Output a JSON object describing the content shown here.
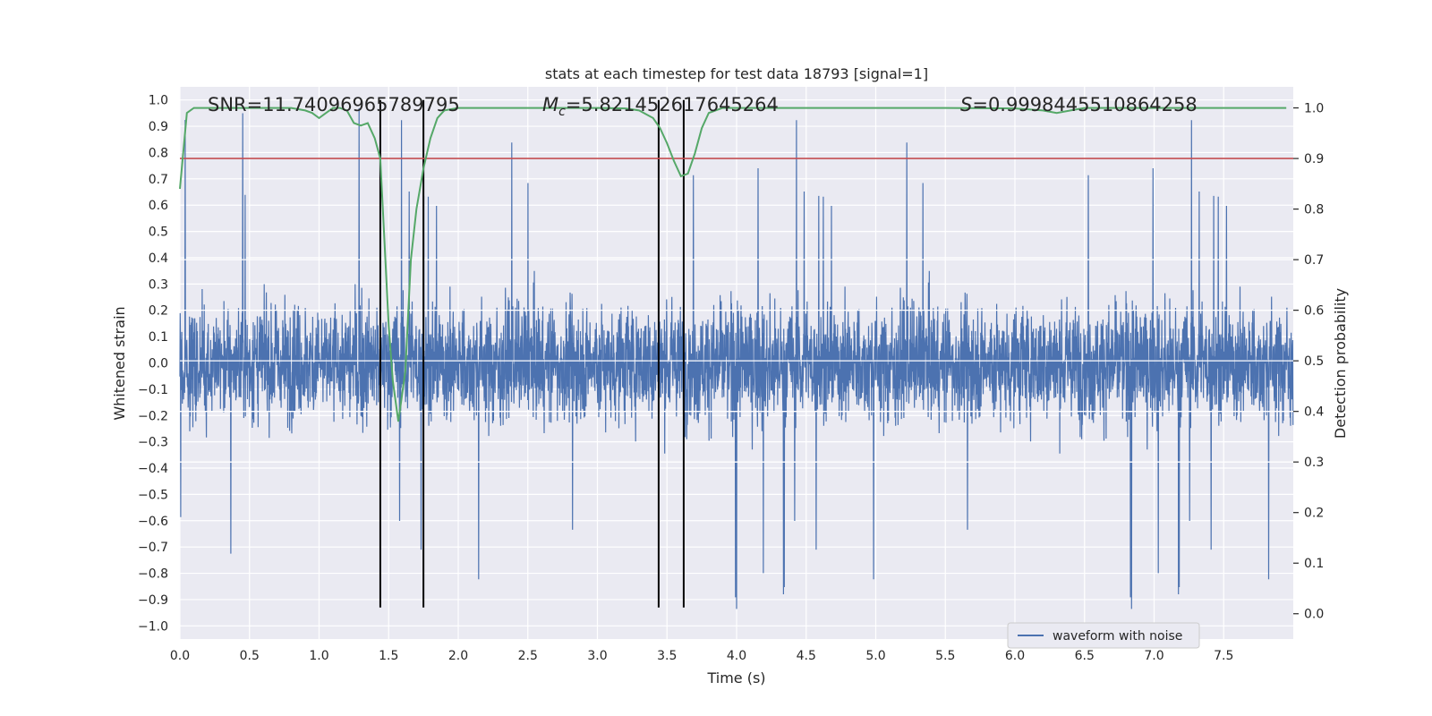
{
  "chart_data": {
    "type": "line",
    "title": "stats at each timestep for test data 18793 [signal=1]",
    "xlabel": "Time (s)",
    "ylabel_left": "Whitened strain",
    "ylabel_right": "Detection probability",
    "xlim": [
      0.0,
      8.0
    ],
    "ylim_left": [
      -1.05,
      1.05
    ],
    "ylim_right": [
      -0.05,
      1.0417
    ],
    "x_ticks": [
      "0.0",
      "0.5",
      "1.0",
      "1.5",
      "2.0",
      "2.5",
      "3.0",
      "3.5",
      "4.0",
      "4.5",
      "5.0",
      "5.5",
      "6.0",
      "6.5",
      "7.0",
      "7.5"
    ],
    "y_ticks_left": [
      "1.0",
      "0.9",
      "0.8",
      "0.7",
      "0.6",
      "0.5",
      "0.4",
      "0.3",
      "0.2",
      "0.1",
      "0.0",
      "−0.1",
      "−0.2",
      "−0.3",
      "−0.4",
      "−0.5",
      "−0.6",
      "−0.7",
      "−0.8",
      "−0.9",
      "−1.0"
    ],
    "y_ticks_right": [
      "1.0",
      "0.9",
      "0.8",
      "0.7",
      "0.6",
      "0.5",
      "0.4",
      "0.3",
      "0.2",
      "0.1",
      "0.0"
    ],
    "grid": true,
    "legend_position": "lower-right",
    "annotations": {
      "snr_label": "SNR",
      "snr_value": "=11.74096965789795",
      "mc_symbol": "M",
      "mc_subscript": "c",
      "mc_value": "=5.821452617645264",
      "s_symbol": "S",
      "s_value": "=0.9998445510864258"
    },
    "series": [
      {
        "name": "waveform with noise",
        "color": "#4c72b0",
        "kind": "noisy_strain",
        "duration_s": 8.0,
        "typical_amplitude": 0.4,
        "peak_amplitude": 1.0
      },
      {
        "color": "#55a868",
        "axis": "right",
        "x": [
          0.0,
          0.05,
          0.1,
          0.2,
          0.3,
          0.4,
          0.5,
          0.6,
          0.7,
          0.8,
          0.9,
          0.95,
          1.0,
          1.05,
          1.1,
          1.15,
          1.2,
          1.25,
          1.3,
          1.35,
          1.4,
          1.44,
          1.5,
          1.53,
          1.57,
          1.62,
          1.66,
          1.7,
          1.75,
          1.8,
          1.85,
          1.9,
          2.0,
          2.2,
          2.4,
          2.6,
          2.8,
          3.0,
          3.2,
          3.3,
          3.4,
          3.45,
          3.5,
          3.55,
          3.6,
          3.65,
          3.7,
          3.75,
          3.8,
          3.9,
          4.0,
          4.5,
          5.0,
          5.5,
          6.0,
          6.2,
          6.3,
          6.4,
          6.5,
          7.0,
          7.5,
          7.95
        ],
        "y": [
          0.84,
          0.99,
          1.0,
          1.0,
          1.0,
          1.0,
          1.0,
          1.0,
          1.0,
          1.0,
          0.995,
          0.99,
          0.98,
          0.99,
          1.0,
          1.0,
          0.995,
          0.97,
          0.965,
          0.97,
          0.94,
          0.9,
          0.57,
          0.46,
          0.38,
          0.48,
          0.7,
          0.8,
          0.88,
          0.94,
          0.98,
          0.995,
          1.0,
          1.0,
          1.0,
          1.0,
          1.0,
          1.0,
          0.999,
          0.995,
          0.98,
          0.96,
          0.93,
          0.895,
          0.865,
          0.87,
          0.91,
          0.96,
          0.99,
          1.0,
          1.0,
          1.0,
          1.0,
          1.0,
          0.999,
          0.995,
          0.99,
          0.995,
          1.0,
          1.0,
          1.0,
          1.0
        ]
      },
      {
        "color": "#c44e52",
        "axis": "right",
        "kind": "threshold",
        "y": 0.9
      }
    ],
    "vertical_lines_s": [
      1.44,
      1.75,
      3.44,
      3.62
    ]
  }
}
